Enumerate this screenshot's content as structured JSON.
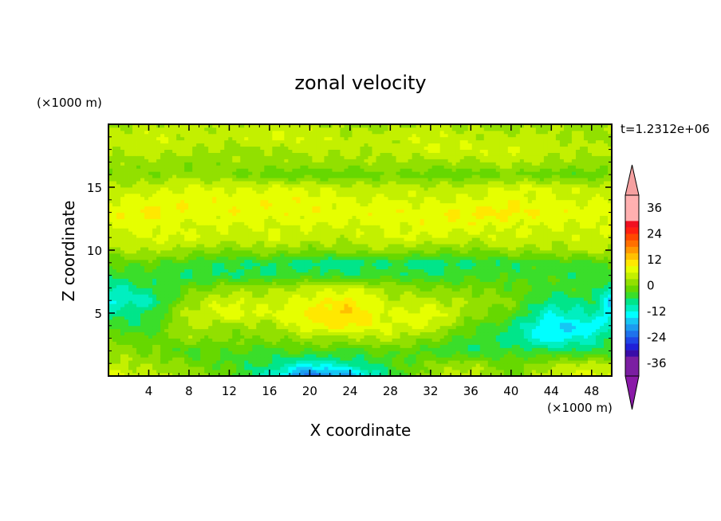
{
  "chart_data": {
    "type": "heatmap",
    "title": "zonal velocity",
    "xlabel": "X coordinate",
    "ylabel": "Z coordinate",
    "x_unit": "(×1000 m)",
    "y_unit": "(×1000 m)",
    "time_label": "t=1.2312e+06",
    "xlim": [
      0,
      50
    ],
    "ylim": [
      0,
      20
    ],
    "x_ticks": [
      4,
      8,
      12,
      16,
      20,
      24,
      28,
      32,
      36,
      40,
      44,
      48
    ],
    "y_ticks": [
      5,
      10,
      15
    ],
    "colorbar": {
      "levels": [
        -42,
        -39,
        -36,
        -33,
        -30,
        -27,
        -24,
        -21,
        -18,
        -15,
        -12,
        -9,
        -6,
        -3,
        0,
        3,
        6,
        9,
        12,
        15,
        18,
        21,
        24,
        27,
        30,
        33,
        36,
        39,
        42
      ],
      "tick_labels": [
        "36",
        "24",
        "12",
        "0",
        "-12",
        "-24",
        "-36"
      ],
      "tick_values": [
        36,
        24,
        12,
        0,
        -12,
        -24,
        -36
      ],
      "colors": [
        "#7b1ea2",
        "#3a0ca8",
        "#2020d8",
        "#1f46e6",
        "#1e72ec",
        "#1b9cf0",
        "#16c6f4",
        "#00ffff",
        "#00efc0",
        "#00e58a",
        "#3ade2a",
        "#66d800",
        "#92e000",
        "#c3f000",
        "#e6ff00",
        "#ffe800",
        "#ffc000",
        "#ff9800",
        "#ff7000",
        "#ff4800",
        "#ff2010",
        "#f01020",
        "#ffb0b0"
      ],
      "over_color": "#f5a0a0",
      "under_color": "#8a1aa8"
    },
    "field_description_values": {
      "x": [
        0,
        4,
        8,
        12,
        16,
        20,
        24,
        28,
        32,
        36,
        40,
        44,
        48,
        50
      ],
      "z": [
        0,
        1,
        2,
        3,
        4,
        5,
        6,
        7,
        8,
        9,
        10,
        11,
        12,
        13,
        14,
        15,
        16,
        17,
        18,
        19,
        20
      ],
      "u": [
        [
          8,
          4,
          2,
          -2,
          -10,
          -24,
          -18,
          -6,
          2,
          6,
          -2,
          6,
          8,
          6
        ],
        [
          4,
          2,
          0,
          -4,
          -6,
          -12,
          -8,
          -4,
          0,
          2,
          -2,
          2,
          4,
          2
        ],
        [
          2,
          0,
          -4,
          -2,
          -4,
          -2,
          -4,
          -2,
          -4,
          -6,
          -4,
          -6,
          -6,
          -4
        ],
        [
          0,
          -2,
          2,
          0,
          0,
          2,
          2,
          4,
          0,
          -4,
          -8,
          -14,
          -10,
          -6
        ],
        [
          -4,
          -6,
          4,
          2,
          2,
          8,
          10,
          6,
          6,
          -2,
          -6,
          -16,
          -14,
          -10
        ],
        [
          -8,
          -6,
          4,
          8,
          6,
          10,
          12,
          6,
          8,
          2,
          -2,
          -12,
          -8,
          -14
        ],
        [
          -12,
          -10,
          2,
          6,
          4,
          8,
          10,
          4,
          4,
          2,
          0,
          -8,
          -6,
          -16
        ],
        [
          -10,
          -6,
          -2,
          2,
          2,
          4,
          6,
          2,
          0,
          0,
          -2,
          -4,
          -4,
          -10
        ],
        [
          -6,
          -4,
          -6,
          -6,
          -6,
          -4,
          -6,
          -4,
          -6,
          -4,
          -4,
          -4,
          -6,
          -4
        ],
        [
          -2,
          -2,
          -4,
          -6,
          -6,
          -8,
          -8,
          -6,
          -8,
          -6,
          -6,
          -4,
          -4,
          -2
        ],
        [
          2,
          4,
          2,
          0,
          2,
          0,
          2,
          2,
          0,
          0,
          2,
          2,
          4,
          4
        ],
        [
          4,
          6,
          6,
          4,
          6,
          4,
          4,
          6,
          6,
          4,
          6,
          4,
          6,
          4
        ],
        [
          6,
          8,
          6,
          6,
          6,
          6,
          6,
          6,
          8,
          8,
          6,
          6,
          6,
          6
        ],
        [
          8,
          10,
          8,
          8,
          8,
          8,
          8,
          8,
          8,
          10,
          10,
          8,
          8,
          8
        ],
        [
          6,
          8,
          8,
          8,
          8,
          8,
          6,
          6,
          6,
          6,
          8,
          6,
          6,
          6
        ],
        [
          4,
          4,
          6,
          6,
          6,
          6,
          4,
          4,
          4,
          4,
          6,
          6,
          4,
          4
        ],
        [
          0,
          0,
          2,
          0,
          -2,
          -2,
          -2,
          0,
          -2,
          -2,
          0,
          -2,
          -2,
          0
        ],
        [
          2,
          2,
          0,
          2,
          2,
          2,
          2,
          2,
          2,
          2,
          4,
          2,
          2,
          2
        ],
        [
          4,
          4,
          4,
          2,
          2,
          4,
          4,
          4,
          6,
          6,
          6,
          4,
          4,
          4
        ],
        [
          4,
          6,
          4,
          4,
          6,
          6,
          4,
          4,
          6,
          4,
          4,
          4,
          2,
          2
        ],
        [
          2,
          4,
          4,
          4,
          4,
          4,
          2,
          2,
          4,
          2,
          2,
          2,
          2,
          2
        ]
      ]
    }
  }
}
